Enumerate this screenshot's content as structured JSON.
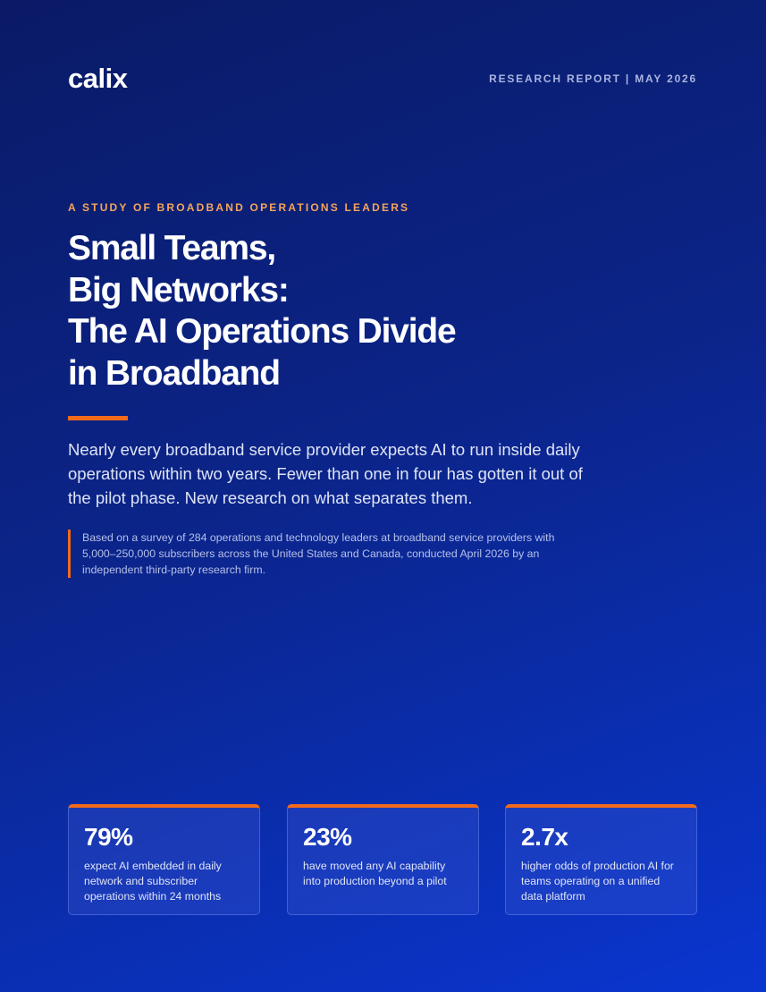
{
  "header": {
    "logo": "calix",
    "meta": "RESEARCH REPORT | MAY 2026"
  },
  "hero": {
    "eyebrow": "A STUDY OF BROADBAND OPERATIONS LEADERS",
    "title_lines": [
      "Small Teams,",
      "Big Networks:",
      "The AI Operations Divide",
      "in Broadband"
    ],
    "lead": "Nearly every broadband service provider expects AI to run inside daily operations within two years. Fewer than one in four has gotten it out of the pilot phase. New research on what separates them.",
    "note": "Based on a survey of 284 operations and technology leaders at broadband service providers with 5,000–250,000 subscribers across the United States and Canada, conducted April 2026 by an independent third-party research firm."
  },
  "stats": [
    {
      "value": "79%",
      "label": "expect AI embedded in daily network and subscriber operations within 24 months"
    },
    {
      "value": "23%",
      "label": "have moved any AI capability into production beyond a pilot"
    },
    {
      "value": "2.7x",
      "label": "higher odds of production AI for teams operating on a unified data platform"
    }
  ]
}
